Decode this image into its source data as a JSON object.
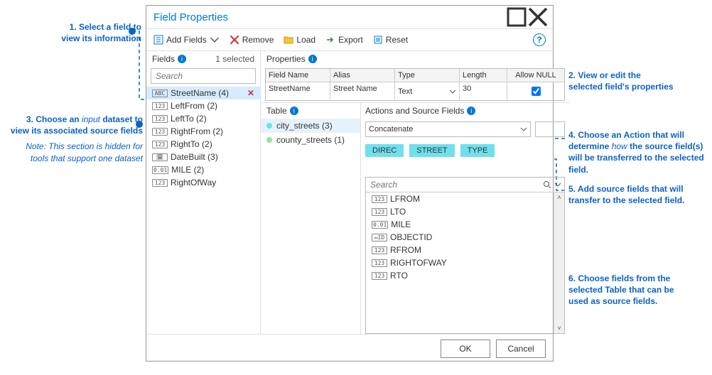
{
  "window": {
    "title": "Field Properties"
  },
  "toolbar": {
    "add_fields": "Add Fields",
    "remove": "Remove",
    "load": "Load",
    "export": "Export",
    "reset": "Reset"
  },
  "fields_section": {
    "header": "Fields",
    "selected_text": "1 selected",
    "search_placeholder": "Search",
    "items": [
      {
        "type_tag": "ABC",
        "label": "StreetName  (4)",
        "selected": true,
        "deletable": true
      },
      {
        "type_tag": "123",
        "label": "LeftFrom  (2)"
      },
      {
        "type_tag": "123",
        "label": "LeftTo  (2)"
      },
      {
        "type_tag": "123",
        "label": "RightFrom  (2)"
      },
      {
        "type_tag": "123",
        "label": "RightTo  (2)"
      },
      {
        "type_tag": "🗓",
        "label": "DateBuilt  (3)"
      },
      {
        "type_tag": "0.01",
        "label": "MILE  (2)"
      },
      {
        "type_tag": "123",
        "label": "RightOfWay"
      }
    ]
  },
  "properties_section": {
    "header": "Properties",
    "cols": {
      "field_name": "Field Name",
      "alias": "Alias",
      "type": "Type",
      "length": "Length",
      "allow_null": "Allow NULL"
    },
    "row": {
      "field_name": "StreetName",
      "alias": "Street Name",
      "type": "Text",
      "length": "30",
      "allow_null": true
    }
  },
  "table_section": {
    "header": "Table",
    "items": [
      {
        "dot_color": "#6fe0ec",
        "label": "city_streets  (3)",
        "selected": true
      },
      {
        "dot_color": "#9be29b",
        "label": "county_streets  (1)"
      }
    ]
  },
  "actions_section": {
    "header": "Actions and Source Fields",
    "action_value": "Concatenate",
    "chips": [
      "DIREC",
      "STREET",
      "TYPE"
    ],
    "source_search_placeholder": "Search",
    "source_fields": [
      {
        "type_tag": "123",
        "label": "LFROM"
      },
      {
        "type_tag": "123",
        "label": "LTO"
      },
      {
        "type_tag": "0.01",
        "label": "MILE"
      },
      {
        "type_tag": "▭ID",
        "label": "OBJECTID"
      },
      {
        "type_tag": "123",
        "label": "RFROM"
      },
      {
        "type_tag": "123",
        "label": "RIGHTOFWAY"
      },
      {
        "type_tag": "123",
        "label": "RTO"
      }
    ]
  },
  "footer": {
    "ok": "OK",
    "cancel": "Cancel"
  },
  "callouts": {
    "c1": "1. Select a field  to\nview  its information",
    "c2": "2. View or edit the\nselected field's properties",
    "c3_a": "3. Choose an ",
    "c3_em": "input",
    "c3_b": " dataset to\nview its associated source fields",
    "c3_note": "Note: This section is hidden for\ntools that support one dataset",
    "c4_a": "4. Choose an Action that will\ndetermine ",
    "c4_em": "how",
    "c4_b": " the source field(s)\nwill be transferred to the selected\nfield.",
    "c5": "5. Add source fields that will\ntransfer to the selected field.",
    "c6": "6. Choose fields from the\nselected Table that can be\nused as source fields."
  },
  "colors": {
    "accent": "#0078d4",
    "callout": "#0b62c4",
    "chip": "#6fe0ec",
    "remove": "#d13438"
  }
}
